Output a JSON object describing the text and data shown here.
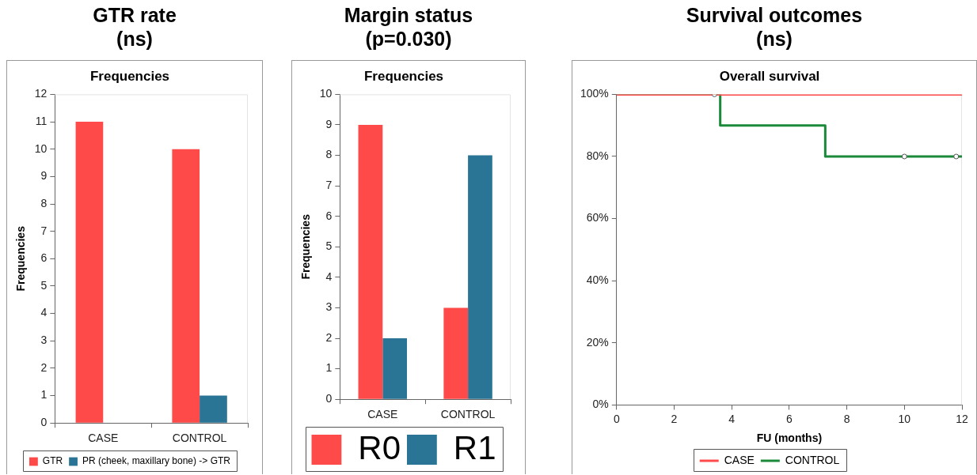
{
  "chart_data": [
    {
      "type": "bar",
      "title": "GTR rate\n(ns)",
      "subtitle": "Frequencies",
      "ylabel": "Frequencies",
      "categories": [
        "CASE",
        "CONTROL"
      ],
      "series": [
        {
          "name": "GTR",
          "color": "#ff4a4a",
          "values": [
            11,
            10
          ]
        },
        {
          "name": "PR (cheek, maxillary bone) -> GTR",
          "color": "#2a7596",
          "values": [
            0,
            1
          ]
        }
      ],
      "ylim": [
        0,
        12
      ],
      "yticks": [
        0,
        1,
        2,
        3,
        4,
        5,
        6,
        7,
        8,
        9,
        10,
        11,
        12
      ],
      "grid": false,
      "legend": "bottom"
    },
    {
      "type": "bar",
      "title": "Margin status\n(p=0.030)",
      "subtitle": "Frequencies",
      "ylabel": "Frequencies",
      "categories": [
        "CASE",
        "CONTROL"
      ],
      "series": [
        {
          "name": "R0",
          "color": "#ff4a4a",
          "values": [
            9,
            3
          ]
        },
        {
          "name": "R1",
          "color": "#2a7596",
          "values": [
            2,
            8
          ]
        }
      ],
      "ylim": [
        0,
        10
      ],
      "yticks": [
        0,
        1,
        2,
        3,
        4,
        5,
        6,
        7,
        8,
        9,
        10
      ],
      "grid": false,
      "legend": "bottom"
    },
    {
      "type": "step",
      "title": "Survival outcomes\n(ns)",
      "subtitle": "Overall survival",
      "xlabel": "FU (months)",
      "series": [
        {
          "name": "CASE",
          "color": "#ff4b4b",
          "x": [
            0,
            12
          ],
          "values": [
            100,
            100
          ]
        },
        {
          "name": "CONTROL",
          "color": "#1a8a3a",
          "x": [
            0,
            3.6,
            7.25,
            12
          ],
          "values": [
            100,
            90,
            80,
            80
          ]
        },
        {
          "type": "scatter",
          "color": "#555555",
          "marker": "circle",
          "x": [
            3.4,
            10,
            11.8
          ],
          "values": [
            100,
            80,
            80
          ]
        }
      ],
      "xlim": [
        0,
        12
      ],
      "xticks": [
        0,
        2,
        4,
        6,
        8,
        10,
        12
      ],
      "ylim": [
        0,
        100
      ],
      "yticks": [
        {
          "value": 0,
          "label": "0%"
        },
        {
          "value": 20,
          "label": "20%"
        },
        {
          "value": 40,
          "label": "40%"
        },
        {
          "value": 60,
          "label": "60%"
        },
        {
          "value": 80,
          "label": "80%"
        },
        {
          "value": 100,
          "label": "100%"
        }
      ],
      "grid": false,
      "legend": "bottom"
    }
  ]
}
